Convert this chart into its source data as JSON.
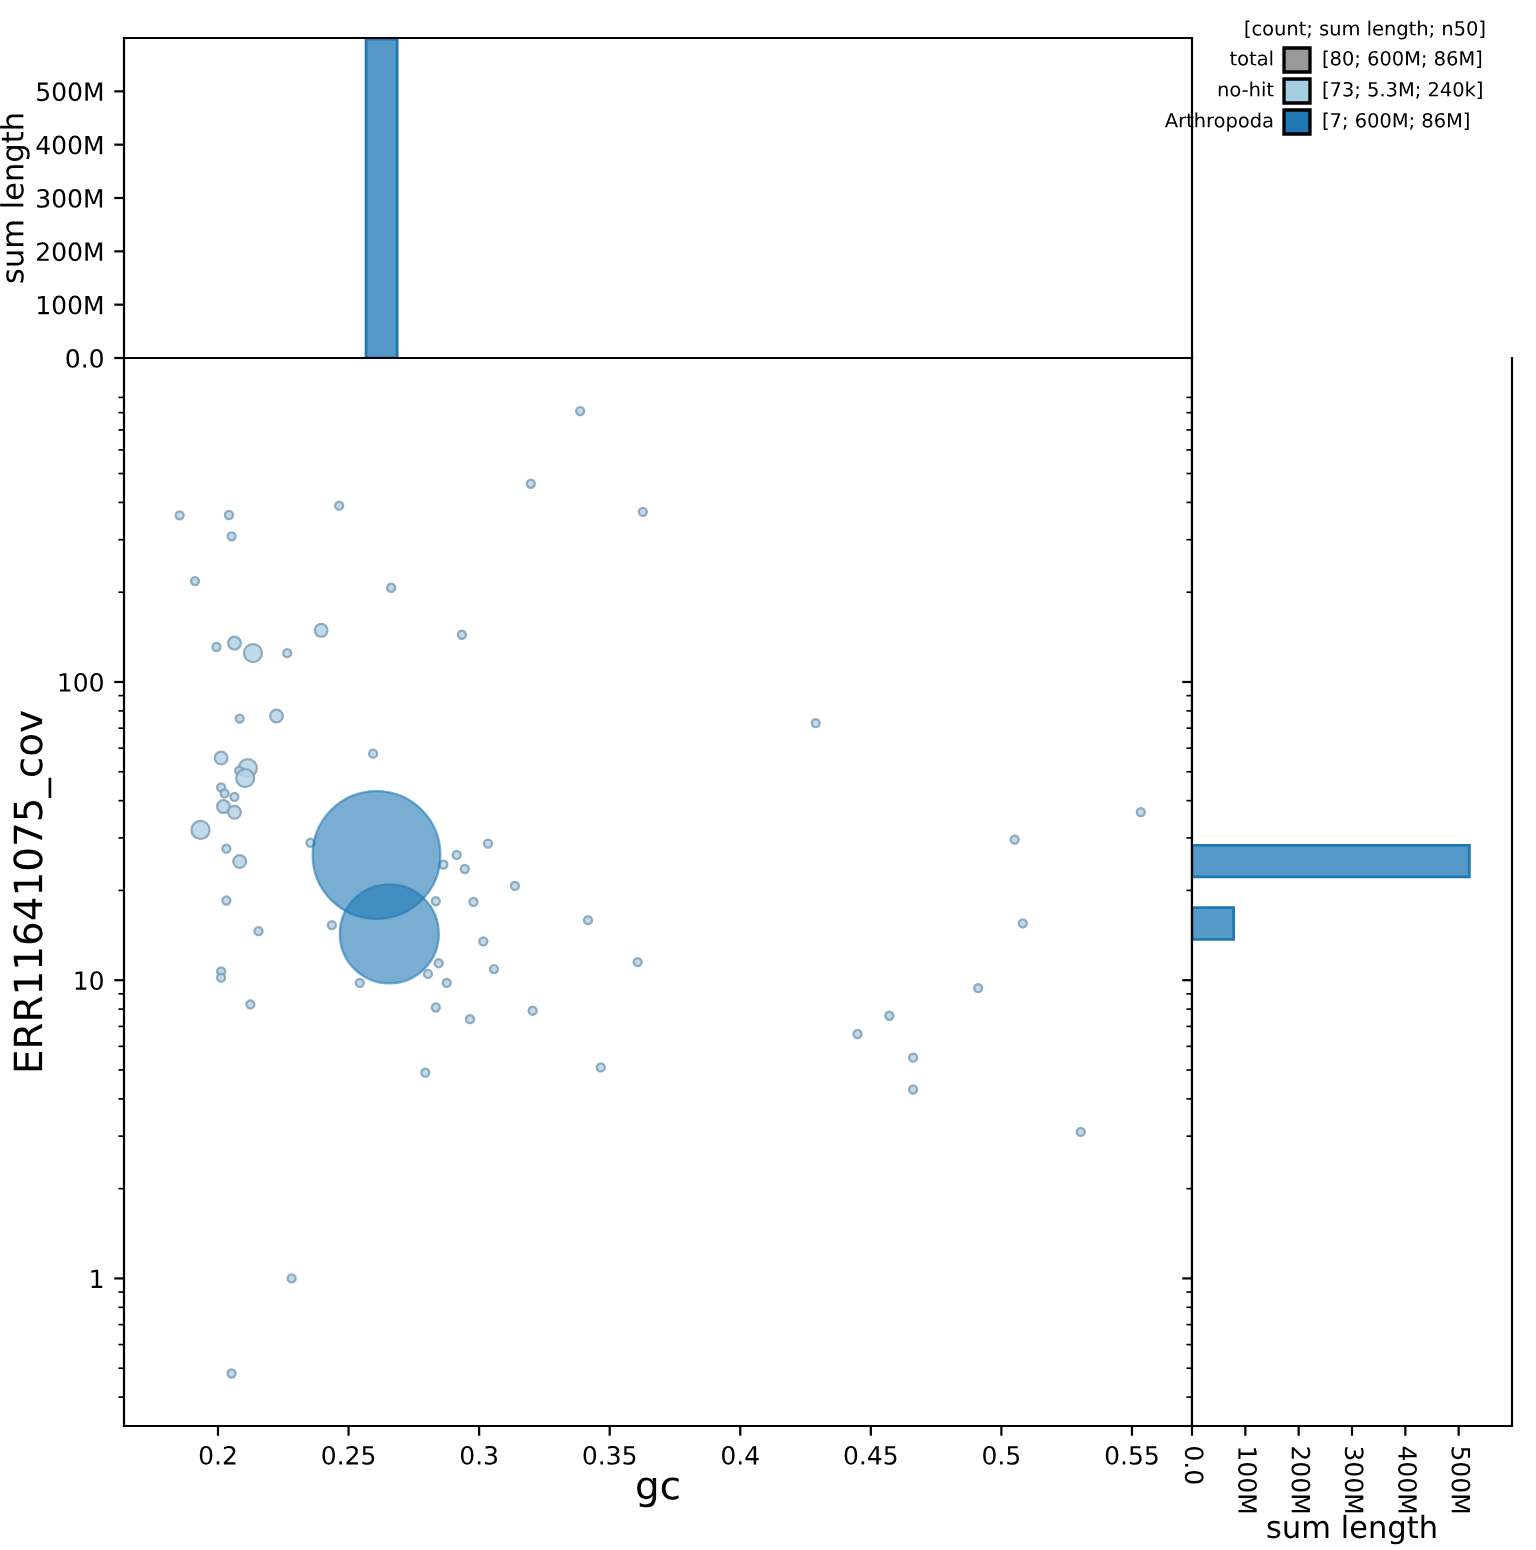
{
  "chart_data": [
    {
      "type": "histogram",
      "bins": [
        0.2567,
        0.2686
      ],
      "values": [
        598000000
      ],
      "color": "#5499c7",
      "xlim": [
        0.164,
        0.573
      ],
      "xticks": [
        0.2,
        0.25,
        0.3,
        0.35,
        0.4,
        0.45,
        0.5,
        0.55
      ],
      "ylim": [
        0,
        600000000
      ],
      "yticks": [
        {
          "value": 0,
          "label": "0.0"
        },
        {
          "value": 100000000,
          "label": "100M"
        },
        {
          "value": 200000000,
          "label": "200M"
        },
        {
          "value": 300000000,
          "label": "300M"
        },
        {
          "value": 400000000,
          "label": "400M"
        },
        {
          "value": 500000000,
          "label": "500M"
        }
      ],
      "ylabel": "sum length",
      "tick_labels": "y"
    },
    {
      "type": "bubble",
      "xlabel": "gc",
      "ylabel": "ERR11641075_cov",
      "log": "y",
      "xlim": [
        0.164,
        0.573
      ],
      "xticks": [
        0.2,
        0.25,
        0.3,
        0.35,
        0.4,
        0.45,
        0.5,
        0.55
      ],
      "ylim": [
        0.32,
        1220
      ],
      "yticks": [
        1,
        10,
        100
      ],
      "series": [
        {
          "color": "#b5d3e7",
          "x": [
            0.3387,
            0.3198,
            0.3627,
            0.1853,
            0.2042,
            0.2464,
            0.2052,
            0.1912,
            0.2663,
            0.1994,
            0.2063,
            0.2134,
            0.2265,
            0.2395,
            0.2934,
            0.2083,
            0.2224,
            0.2594,
            0.2012,
            0.2114,
            0.2081,
            0.2104,
            0.2012,
            0.2025,
            0.2063,
            0.2021,
            0.2063,
            0.1933,
            0.2354,
            0.3034,
            0.2032,
            0.2914,
            0.2083,
            0.2863,
            0.2945,
            0.3137,
            0.2032,
            0.2834,
            0.2978,
            0.2436,
            0.3417,
            0.2155,
            0.3016,
            0.2012,
            0.2012,
            0.2124,
            0.2543,
            0.2845,
            0.2804,
            0.2876,
            0.2834,
            0.2965,
            0.3057,
            0.3205,
            0.2794,
            0.3466,
            0.3607,
            0.2282,
            0.2052,
            0.4289,
            0.5534,
            0.5051,
            0.5082,
            0.4911,
            0.4571,
            0.4449,
            0.4662,
            0.4662,
            0.5304
          ],
          "values": [
            810,
            462,
            372,
            362,
            363,
            390,
            308,
            218,
            207,
            131,
            135,
            125,
            125,
            149,
            144,
            75.4,
            76.9,
            57.5,
            55.6,
            51.4,
            50.4,
            47.6,
            44.3,
            42.3,
            41.2,
            38.2,
            36.6,
            31.9,
            28.9,
            28.7,
            27.6,
            26.3,
            25.0,
            24.4,
            23.6,
            20.7,
            18.5,
            18.4,
            18.3,
            15.3,
            15.9,
            14.6,
            13.5,
            10.7,
            10.2,
            8.3,
            9.8,
            11.4,
            10.5,
            9.8,
            8.1,
            7.4,
            10.9,
            7.9,
            4.9,
            5.1,
            11.5,
            1.0,
            0.48,
            72.8,
            36.6,
            29.6,
            15.5,
            9.4,
            7.6,
            6.6,
            5.5,
            4.3,
            3.1
          ],
          "sizes": [
            0.004,
            0.004,
            0.004,
            0.004,
            0.004,
            0.004,
            0.004,
            0.004,
            0.004,
            0.004,
            0.01,
            0.02,
            0.004,
            0.01,
            0.004,
            0.004,
            0.01,
            0.004,
            0.01,
            0.02,
            0.004,
            0.02,
            0.004,
            0.004,
            0.004,
            0.01,
            0.01,
            0.02,
            0.004,
            0.004,
            0.004,
            0.004,
            0.01,
            0.004,
            0.004,
            0.004,
            0.004,
            0.004,
            0.004,
            0.004,
            0.004,
            0.004,
            0.004,
            0.004,
            0.004,
            0.004,
            0.004,
            0.004,
            0.004,
            0.004,
            0.004,
            0.004,
            0.004,
            0.004,
            0.004,
            0.004,
            0.004,
            0.004,
            0.004,
            0.004,
            0.004,
            0.004,
            0.004,
            0.004,
            0.004,
            0.004,
            0.004,
            0.004,
            0.004
          ]
        },
        {
          "color": "#1f78b4",
          "x": [
            0.2607,
            0.2656
          ],
          "values": [
            26.3,
            14.3
          ],
          "sizes": [
            1.0,
            0.6
          ]
        }
      ]
    },
    {
      "type": "histogram",
      "orientation": "horizontal",
      "bins": [
        13.7,
        17.5,
        22.2,
        28.3
      ],
      "values": [
        78000000,
        0,
        520000000
      ],
      "color": "#5499c7",
      "log": "y",
      "ylim": [
        0.32,
        1220
      ],
      "yticks": [
        1,
        10,
        100
      ],
      "xlim": [
        0,
        600000000
      ],
      "xticks": [
        {
          "value": 0,
          "label": "0.0"
        },
        {
          "value": 100000000,
          "label": "100M"
        },
        {
          "value": 200000000,
          "label": "200M"
        },
        {
          "value": 300000000,
          "label": "300M"
        },
        {
          "value": 400000000,
          "label": "400M"
        },
        {
          "value": 500000000,
          "label": "500M"
        }
      ],
      "xlabel": "sum length",
      "tick_labels": "x"
    },
    {
      "type": "other",
      "legend_title": "[count; sum length; n50]",
      "categories": [
        "total",
        "no-hit",
        "Arthropoda"
      ],
      "colors": [
        "#999999",
        "#a6cee3",
        "#1f78b4"
      ],
      "annotations": [
        "[80; 600M; 86M]",
        "[73; 5.3M; 240k]",
        "[7; 600M; 86M]"
      ]
    }
  ]
}
